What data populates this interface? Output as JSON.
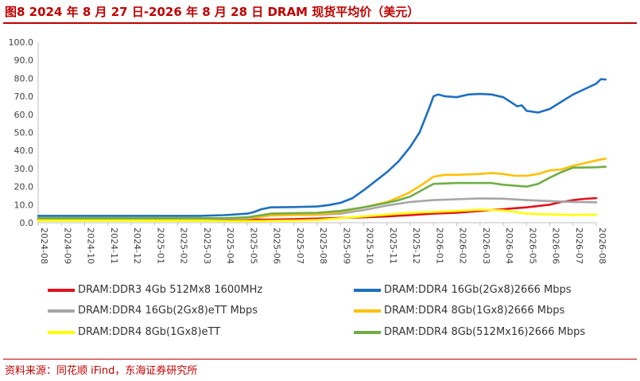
{
  "header": {
    "title": "图8  2024 年 8 月 27 日-2026 年 8 月 28 日 DRAM 现货平均价（美元）"
  },
  "footer": {
    "source": "资料来源：同花顺 iFind，东海证券研究所"
  },
  "chart_data": {
    "type": "line",
    "title": "图8  2024 年 8 月 27 日-2026 年 8 月 28 日 DRAM 现货平均价（美元）",
    "xlabel": "",
    "ylabel": "",
    "ylim": [
      0,
      100
    ],
    "yticks": [
      "0.0",
      "10.0",
      "20.0",
      "30.0",
      "40.0",
      "50.0",
      "60.0",
      "70.0",
      "80.0",
      "90.0",
      "100.0"
    ],
    "xticks": [
      "2024-08",
      "2024-09",
      "2024-10",
      "2024-11",
      "2024-12",
      "2025-01",
      "2025-02",
      "2025-03",
      "2025-04",
      "2025-05",
      "2025-06",
      "2025-07",
      "2025-08",
      "2025-09",
      "2025-10",
      "2025-11",
      "2025-12",
      "2026-01",
      "2026-02",
      "2026-03",
      "2026-04",
      "2026-05",
      "2026-06",
      "2026-07",
      "2026-08"
    ],
    "grid": false,
    "legend_position": "bottom",
    "series": [
      {
        "name": "DRAM:DDR3 4Gb 512Mx8 1600MHz",
        "color": "#e0141e",
        "points": [
          [
            0,
            1.4
          ],
          [
            3,
            1.4
          ],
          [
            6,
            1.5
          ],
          [
            9,
            1.6
          ],
          [
            10,
            1.7
          ],
          [
            11,
            2.0
          ],
          [
            12,
            2.3
          ],
          [
            13,
            2.7
          ],
          [
            14,
            3.0
          ],
          [
            15,
            3.5
          ],
          [
            16,
            4.2
          ],
          [
            17,
            5.0
          ],
          [
            18,
            5.5
          ],
          [
            19,
            6.5
          ],
          [
            20,
            7.5
          ],
          [
            20.5,
            8.0
          ],
          [
            21,
            8.5
          ],
          [
            22,
            10.0
          ],
          [
            22.5,
            11.5
          ],
          [
            23,
            12.5
          ],
          [
            23.5,
            13.2
          ],
          [
            24,
            13.6
          ]
        ]
      },
      {
        "name": "DRAM:DDR4 16Gb(2Gx8)2666 Mbps",
        "color": "#1f6fbf",
        "points": [
          [
            0,
            3.8
          ],
          [
            3,
            3.8
          ],
          [
            7,
            3.8
          ],
          [
            8,
            4.2
          ],
          [
            9,
            5.0
          ],
          [
            9.3,
            6.0
          ],
          [
            9.6,
            7.5
          ],
          [
            10,
            8.5
          ],
          [
            11,
            8.7
          ],
          [
            12,
            9.0
          ],
          [
            12.5,
            9.8
          ],
          [
            13,
            11.0
          ],
          [
            13.5,
            13.5
          ],
          [
            14,
            18.0
          ],
          [
            14.5,
            23.0
          ],
          [
            15,
            28.0
          ],
          [
            15.5,
            34.0
          ],
          [
            16,
            42.0
          ],
          [
            16.4,
            50.0
          ],
          [
            16.8,
            63.0
          ],
          [
            17,
            70.0
          ],
          [
            17.2,
            71.0
          ],
          [
            17.5,
            70.0
          ],
          [
            18,
            69.5
          ],
          [
            18.5,
            71.0
          ],
          [
            19,
            71.3
          ],
          [
            19.5,
            71.0
          ],
          [
            20,
            69.5
          ],
          [
            20.3,
            67.0
          ],
          [
            20.6,
            64.5
          ],
          [
            20.8,
            65.0
          ],
          [
            21,
            62.0
          ],
          [
            21.5,
            61.0
          ],
          [
            22,
            63.0
          ],
          [
            22.5,
            67.0
          ],
          [
            23,
            71.0
          ],
          [
            23.5,
            74.0
          ],
          [
            24,
            77.0
          ],
          [
            24.2,
            79.5
          ],
          [
            24.4,
            79.3
          ]
        ]
      },
      {
        "name": "DRAM:DDR4 16Gb(2Gx8)eTT Mbps",
        "color": "#a6a6a6",
        "points": [
          [
            0,
            2.0
          ],
          [
            6,
            2.0
          ],
          [
            9,
            2.2
          ],
          [
            9.5,
            3.0
          ],
          [
            10,
            4.2
          ],
          [
            12,
            4.4
          ],
          [
            13,
            5.0
          ],
          [
            14,
            7.0
          ],
          [
            15,
            9.5
          ],
          [
            16,
            11.5
          ],
          [
            17,
            12.5
          ],
          [
            18,
            13.0
          ],
          [
            19,
            13.5
          ],
          [
            20,
            13.3
          ],
          [
            21,
            12.5
          ],
          [
            22,
            12.0
          ],
          [
            23,
            11.5
          ],
          [
            24,
            11.3
          ]
        ]
      },
      {
        "name": "DRAM:DDR4 8Gb(1Gx8)2666 Mbps",
        "color": "#ffc000",
        "points": [
          [
            0,
            2.2
          ],
          [
            6,
            2.2
          ],
          [
            9,
            2.6
          ],
          [
            10,
            4.0
          ],
          [
            12,
            4.6
          ],
          [
            13,
            6.0
          ],
          [
            14,
            8.5
          ],
          [
            15,
            11.5
          ],
          [
            15.5,
            14.0
          ],
          [
            16,
            17.0
          ],
          [
            16.5,
            21.0
          ],
          [
            17,
            25.5
          ],
          [
            17.5,
            26.5
          ],
          [
            18,
            26.5
          ],
          [
            19,
            27.0
          ],
          [
            19.5,
            27.5
          ],
          [
            20,
            27.0
          ],
          [
            20.5,
            26.0
          ],
          [
            21,
            26.0
          ],
          [
            21.5,
            27.0
          ],
          [
            22,
            29.0
          ],
          [
            22.5,
            29.5
          ],
          [
            23,
            31.5
          ],
          [
            23.5,
            33.0
          ],
          [
            24,
            34.5
          ],
          [
            24.4,
            35.5
          ]
        ]
      },
      {
        "name": "DRAM:DDR4 8Gb(1Gx8)eTT",
        "color": "#ffff00",
        "points": [
          [
            0,
            1.1
          ],
          [
            4,
            1.1
          ],
          [
            7,
            1.0
          ],
          [
            8,
            0.9
          ],
          [
            9,
            0.9
          ],
          [
            10,
            1.0
          ],
          [
            11,
            1.2
          ],
          [
            12,
            1.5
          ],
          [
            13,
            2.5
          ],
          [
            14,
            3.5
          ],
          [
            15,
            4.5
          ],
          [
            16,
            5.5
          ],
          [
            17,
            6.0
          ],
          [
            18,
            6.5
          ],
          [
            19,
            7.2
          ],
          [
            20,
            6.8
          ],
          [
            20.5,
            6.0
          ],
          [
            21,
            5.0
          ],
          [
            22,
            4.6
          ],
          [
            23,
            4.3
          ],
          [
            24,
            4.5
          ]
        ]
      },
      {
        "name": "DRAM:DDR4 8Gb(512Mx16)2666 Mbps",
        "color": "#70ad47",
        "points": [
          [
            0,
            2.5
          ],
          [
            6,
            2.5
          ],
          [
            8,
            2.5
          ],
          [
            9,
            3.0
          ],
          [
            10,
            5.0
          ],
          [
            12,
            5.5
          ],
          [
            13,
            6.5
          ],
          [
            14,
            8.5
          ],
          [
            15,
            11.0
          ],
          [
            15.5,
            12.5
          ],
          [
            16,
            14.5
          ],
          [
            16.5,
            18.0
          ],
          [
            17,
            21.5
          ],
          [
            18,
            22.0
          ],
          [
            19,
            22.0
          ],
          [
            19.5,
            22.0
          ],
          [
            20,
            21.0
          ],
          [
            21,
            20.0
          ],
          [
            21.5,
            21.5
          ],
          [
            22,
            25.0
          ],
          [
            22.5,
            28.0
          ],
          [
            23,
            30.5
          ],
          [
            24,
            30.7
          ],
          [
            24.4,
            31.0
          ]
        ]
      }
    ]
  },
  "legend": [
    {
      "label": "DRAM:DDR3 4Gb 512Mx8 1600MHz",
      "color": "#e0141e"
    },
    {
      "label": "DRAM:DDR4 16Gb(2Gx8)2666 Mbps",
      "color": "#1f6fbf"
    },
    {
      "label": "DRAM:DDR4 16Gb(2Gx8)eTT Mbps",
      "color": "#a6a6a6"
    },
    {
      "label": "DRAM:DDR4 8Gb(1Gx8)2666 Mbps",
      "color": "#ffc000"
    },
    {
      "label": "DRAM:DDR4 8Gb(1Gx8)eTT",
      "color": "#ffff00"
    },
    {
      "label": "DRAM:DDR4 8Gb(512Mx16)2666 Mbps",
      "color": "#70ad47"
    }
  ]
}
